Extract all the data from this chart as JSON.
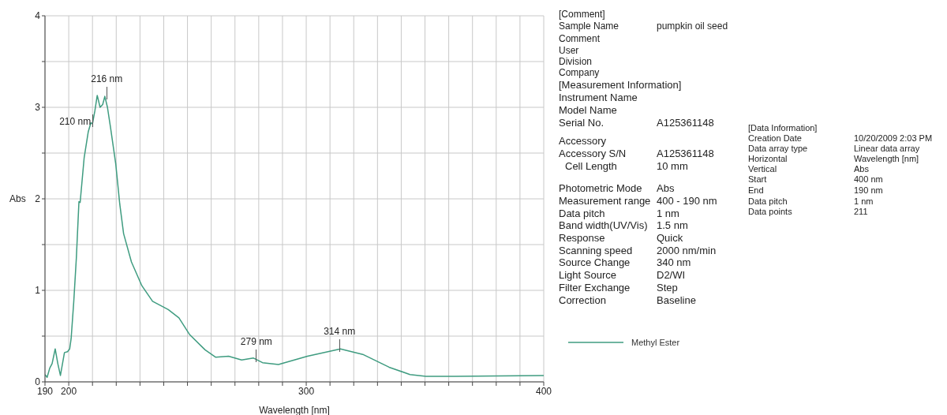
{
  "chart_data": {
    "type": "line",
    "xlabel": "Wavelength [nm]",
    "ylabel": "Abs",
    "x": [
      190,
      190.9,
      192,
      193,
      194.3,
      195.4,
      196.5,
      198.2,
      199.5,
      200.4,
      201,
      202.1,
      203.2,
      204.3,
      204.8,
      206.5,
      208.2,
      209.3,
      210,
      211,
      212,
      213.2,
      214.3,
      215.2,
      216.3,
      217.6,
      219.8,
      221.5,
      223.1,
      226.4,
      230.8,
      235.3,
      241.9,
      246.4,
      250.8,
      257.4,
      261.8,
      267.3,
      272.8,
      277.8,
      281.6,
      288.3,
      300.5,
      314.4,
      323.8,
      334.9,
      343.7,
      350.4,
      362.6,
      399,
      400
    ],
    "series": [
      {
        "name": "Methyl Ester",
        "color": "#3f9c80",
        "values": [
          0.08,
          0.05,
          0.15,
          0.2,
          0.36,
          0.2,
          0.07,
          0.32,
          0.33,
          0.36,
          0.47,
          0.87,
          1.35,
          1.97,
          1.96,
          2.45,
          2.73,
          2.83,
          2.82,
          2.96,
          3.13,
          3.0,
          3.03,
          3.12,
          3.0,
          2.78,
          2.38,
          1.94,
          1.62,
          1.31,
          1.05,
          0.88,
          0.79,
          0.7,
          0.52,
          0.35,
          0.27,
          0.28,
          0.24,
          0.26,
          0.21,
          0.19,
          0.28,
          0.36,
          0.3,
          0.16,
          0.08,
          0.06,
          0.06,
          0.07,
          0.07
        ]
      }
    ],
    "xlim": [
      190,
      400
    ],
    "xticks": [
      190,
      200,
      {
        "value": 210,
        "label": null
      },
      {
        "value": 220,
        "label": null
      },
      {
        "value": 230,
        "label": null
      },
      {
        "value": 240,
        "label": null
      },
      {
        "value": 250,
        "label": null
      },
      {
        "value": 260,
        "label": null
      },
      {
        "value": 270,
        "label": null
      },
      {
        "value": 280,
        "label": null
      },
      {
        "value": 290,
        "label": null
      },
      300,
      {
        "value": 310,
        "label": null
      },
      {
        "value": 320,
        "label": null
      },
      {
        "value": 330,
        "label": null
      },
      {
        "value": 340,
        "label": null
      },
      {
        "value": 350,
        "label": null
      },
      {
        "value": 360,
        "label": null
      },
      {
        "value": 370,
        "label": null
      },
      {
        "value": 380,
        "label": null
      },
      {
        "value": 390,
        "label": null
      },
      400
    ],
    "ylim": [
      0,
      4
    ],
    "yticks": [
      0,
      {
        "value": 0.5,
        "label": null
      },
      1,
      {
        "value": 1.5,
        "label": null
      },
      2,
      {
        "value": 2.5,
        "label": null
      },
      3,
      {
        "value": 3.5,
        "label": null
      },
      4
    ],
    "grid": true,
    "legend": "right",
    "marker": "none",
    "line_style": "solid",
    "annotations": [
      {
        "text": "216 nm",
        "x": 216,
        "y": 3.12
      },
      {
        "text": "210 nm",
        "x": 210,
        "y": 2.82
      },
      {
        "text": "279 nm",
        "x": 279,
        "y": 0.25
      },
      {
        "text": "314 nm",
        "x": 314,
        "y": 0.36
      },
      "[Comment]",
      "Sample Name",
      "pumpkin oil seed",
      "Comment",
      "User",
      "Division",
      "Company",
      "[Measurement Information]",
      "Instrument Name",
      "Model Name",
      "Serial No.",
      "A125361148",
      "Accessory",
      "Accessory S/N",
      "A125361148",
      "Cell Length",
      "10 mm",
      "Photometric Mode",
      "Abs",
      "Measurement range",
      "400 - 190 nm",
      "Data pitch",
      "1 nm",
      "Band width(UV/Vis)",
      "1.5 nm",
      "Response",
      "Quick",
      "Scanning speed",
      "2000 nm/min",
      "Source Change",
      "340 nm",
      "Light Source",
      "D2/WI",
      "Filter Exchange",
      "Step",
      "Correction",
      "Baseline",
      "[Data Information]",
      "Creation Date",
      "10/20/2009 2:03 PM",
      "Data array type",
      "Linear data array",
      "Horizontal",
      "Wavelength [nm]",
      "Vertical",
      "Abs",
      "Start",
      "400 nm",
      "End",
      "190 nm",
      "Data pitch",
      "1 nm",
      "Data points",
      "211"
    ]
  }
}
